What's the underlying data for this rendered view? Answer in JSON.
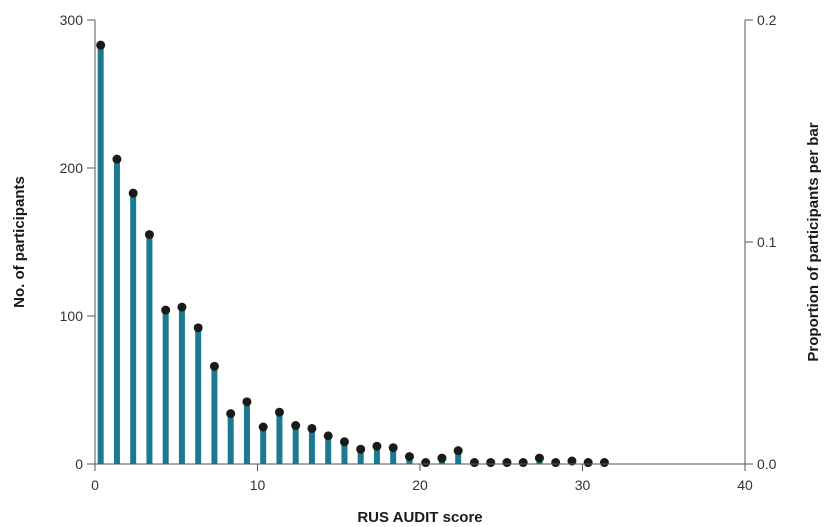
{
  "chart_data": {
    "type": "bar",
    "title": "",
    "xlabel": "RUS AUDIT score",
    "ylabel": "No. of participants",
    "y2label": "Proportion of participants per bar",
    "xlim": [
      0,
      40
    ],
    "ylim": [
      0,
      300
    ],
    "y2lim": [
      0,
      0.2
    ],
    "x_ticks": [
      "0",
      "10",
      "20",
      "30",
      "40"
    ],
    "y_ticks": [
      "0",
      "100",
      "200",
      "300"
    ],
    "y2_ticks": [
      "0.0",
      "0.1",
      "0.2"
    ],
    "grid": false,
    "legend": "none",
    "bar_color": "#1a7a8f",
    "point_color": "#1a1a1a",
    "x": [
      0,
      1,
      2,
      3,
      4,
      5,
      6,
      7,
      8,
      9,
      10,
      11,
      12,
      13,
      14,
      15,
      16,
      17,
      18,
      19,
      20,
      21,
      22,
      23,
      24,
      25,
      26,
      27,
      28,
      29,
      30,
      31
    ],
    "values": [
      282,
      205,
      182,
      154,
      103,
      105,
      91,
      65,
      33,
      41,
      24,
      35,
      26,
      24,
      19,
      14,
      10,
      12,
      11,
      5,
      0,
      4,
      8,
      1,
      1,
      1,
      1,
      4,
      1,
      2,
      1,
      0
    ],
    "proportion_points": [
      283,
      206,
      183,
      155,
      104,
      106,
      92,
      66,
      34,
      42,
      25,
      35,
      26,
      24,
      19,
      15,
      10,
      12,
      11,
      5,
      1,
      4,
      9,
      1,
      1,
      1,
      1,
      4,
      1,
      2,
      1,
      1
    ]
  }
}
